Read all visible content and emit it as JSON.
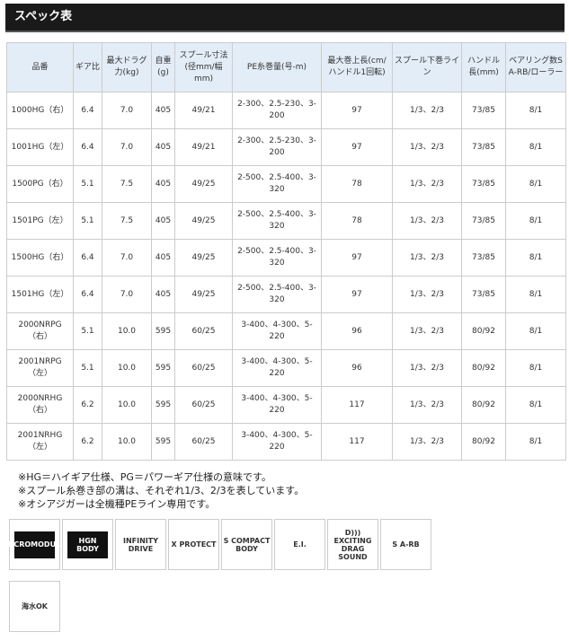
{
  "title": "スペック表",
  "table": {
    "headers": [
      "品番",
      "ギア比",
      "最大ドラグ力(kg)",
      "自重(g)",
      "スプール寸法(径mm/幅mm)",
      "PE糸巻量(号-m)",
      "最大巻上長(cm/ハンドル1回転)",
      "スプール下巻ライン",
      "ハンドル長(mm)",
      "ベアリング数S A-RB/ローラー"
    ],
    "rows": [
      [
        "1000HG（右）",
        "6.4",
        "7.0",
        "405",
        "49/21",
        "2-300、2.5-230、3-200",
        "97",
        "1/3、2/3",
        "73/85",
        "8/1"
      ],
      [
        "1001HG（左）",
        "6.4",
        "7.0",
        "405",
        "49/21",
        "2-300、2.5-230、3-200",
        "97",
        "1/3、2/3",
        "73/85",
        "8/1"
      ],
      [
        "1500PG（右）",
        "5.1",
        "7.5",
        "405",
        "49/25",
        "2-500、2.5-400、3-320",
        "78",
        "1/3、2/3",
        "73/85",
        "8/1"
      ],
      [
        "1501PG（左）",
        "5.1",
        "7.5",
        "405",
        "49/25",
        "2-500、2.5-400、3-320",
        "78",
        "1/3、2/3",
        "73/85",
        "8/1"
      ],
      [
        "1500HG（右）",
        "6.4",
        "7.0",
        "405",
        "49/25",
        "2-500、2.5-400、3-320",
        "97",
        "1/3、2/3",
        "73/85",
        "8/1"
      ],
      [
        "1501HG（左）",
        "6.4",
        "7.0",
        "405",
        "49/25",
        "2-500、2.5-400、3-320",
        "97",
        "1/3、2/3",
        "73/85",
        "8/1"
      ],
      [
        "2000NRPG（右）",
        "5.1",
        "10.0",
        "595",
        "60/25",
        "3-400、4-300、5-220",
        "96",
        "1/3、2/3",
        "80/92",
        "8/1"
      ],
      [
        "2001NRPG（左）",
        "5.1",
        "10.0",
        "595",
        "60/25",
        "3-400、4-300、5-220",
        "96",
        "1/3、2/3",
        "80/92",
        "8/1"
      ],
      [
        "2000NRHG（右）",
        "6.2",
        "10.0",
        "595",
        "60/25",
        "3-400、4-300、5-220",
        "117",
        "1/3、2/3",
        "80/92",
        "8/1"
      ],
      [
        "2001NRHG（左）",
        "6.2",
        "10.0",
        "595",
        "60/25",
        "3-400、4-300、5-220",
        "117",
        "1/3、2/3",
        "80/92",
        "8/1"
      ]
    ]
  },
  "notes": [
    "※HG＝ハイギア仕様、PG＝パワーギア仕様の意味です。",
    "※スプール糸巻き部の溝は、それぞれ1/3、2/3を表しています。",
    "※オシアジガーは全機種PEライン専用です。"
  ],
  "features": [
    {
      "label": "MICROMODULE",
      "dark": true
    },
    {
      "label": "HGN BODY",
      "dark": true
    },
    {
      "label": "INFINITY DRIVE",
      "dark": false
    },
    {
      "label": "X PROTECT",
      "dark": false
    },
    {
      "label": "S COMPACT BODY",
      "dark": false
    },
    {
      "label": "E.I.",
      "dark": false
    },
    {
      "label": "D))) EXCITING DRAG SOUND",
      "dark": false
    },
    {
      "label": "S A-RB",
      "dark": false
    },
    {
      "label": "海水OK",
      "dark": false
    }
  ]
}
